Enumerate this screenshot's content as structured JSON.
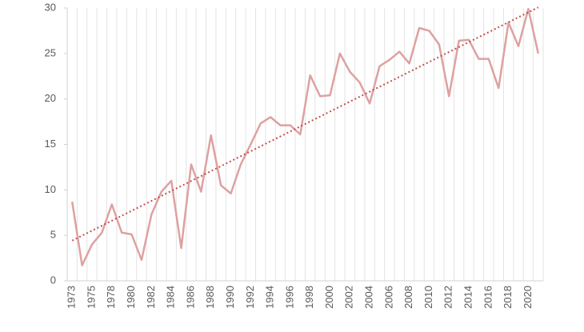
{
  "chart_data": {
    "type": "line",
    "categories": [
      "1973",
      null,
      "1975",
      null,
      "1978",
      null,
      "1980",
      null,
      "1982",
      null,
      "1984",
      null,
      "1986",
      null,
      "1988",
      null,
      "1990",
      null,
      "1992",
      null,
      "1994",
      null,
      "1996",
      null,
      "1998",
      null,
      "2000",
      null,
      "2002",
      null,
      "2004",
      null,
      "2006",
      null,
      "2008",
      null,
      "2010",
      null,
      "2012",
      null,
      "2014",
      null,
      "2016",
      null,
      "2018",
      null,
      "2020",
      null
    ],
    "series": [
      {
        "color": "#dea1a1",
        "values": [
          8.7,
          1.7,
          4.0,
          5.3,
          8.4,
          5.3,
          5.1,
          2.3,
          7.3,
          9.8,
          11.0,
          3.6,
          12.8,
          9.8,
          16.0,
          10.5,
          9.6,
          12.8,
          15.0,
          17.3,
          18.0,
          17.1,
          17.1,
          16.1,
          22.6,
          20.3,
          20.4,
          25.0,
          23.0,
          21.8,
          19.5,
          23.6,
          24.3,
          25.2,
          23.9,
          27.8,
          27.5,
          26.0,
          20.3,
          26.4,
          26.5,
          24.4,
          24.4,
          21.2,
          28.4,
          25.8,
          29.9,
          25.0
        ]
      }
    ],
    "trendline": {
      "type": "linear",
      "color": "#c0504d",
      "dash": "dotted"
    },
    "ylim": [
      0,
      30
    ],
    "yticks": [
      0,
      5,
      10,
      15,
      20,
      25,
      30
    ],
    "grid": "x"
  }
}
